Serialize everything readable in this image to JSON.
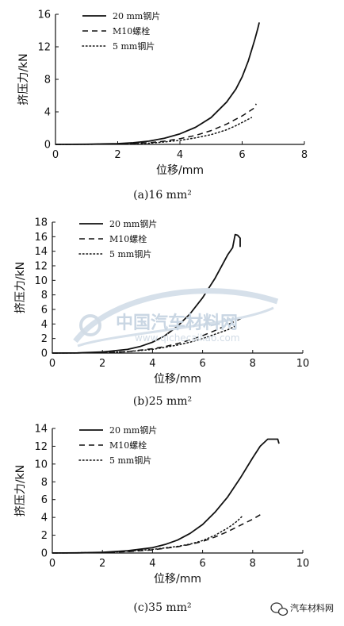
{
  "chart_data": [
    {
      "type": "line",
      "caption": "(a)16 mm²",
      "xlabel": "位移/mm",
      "ylabel": "挤压力/kN",
      "xlim": [
        0,
        8
      ],
      "ylim": [
        0,
        16
      ],
      "xticks": [
        0,
        2,
        4,
        6,
        8
      ],
      "yticks": [
        0,
        4,
        8,
        12,
        16
      ],
      "legend_position": "top-left",
      "series": [
        {
          "name": "20 mm钢片",
          "style": "solid",
          "x": [
            0,
            1,
            2,
            2.5,
            3,
            3.5,
            4,
            4.5,
            5,
            5.5,
            5.8,
            6,
            6.2,
            6.4,
            6.5,
            6.55
          ],
          "y": [
            0,
            0.02,
            0.1,
            0.2,
            0.4,
            0.75,
            1.3,
            2.1,
            3.3,
            5.2,
            6.8,
            8.3,
            10.3,
            12.8,
            14.2,
            15
          ]
        },
        {
          "name": "M10螺栓",
          "style": "dashed",
          "x": [
            0,
            2,
            3,
            3.5,
            4,
            4.5,
            5,
            5.5,
            6,
            6.2,
            6.4,
            6.45
          ],
          "y": [
            0,
            0.05,
            0.2,
            0.4,
            0.7,
            1.1,
            1.7,
            2.5,
            3.5,
            4.0,
            4.5,
            5.0
          ]
        },
        {
          "name": "5 mm钢片",
          "style": "dotted",
          "x": [
            0,
            2,
            3,
            3.5,
            4,
            4.5,
            5,
            5.5,
            5.8,
            6,
            6.2,
            6.3
          ],
          "y": [
            0,
            0.03,
            0.15,
            0.3,
            0.5,
            0.8,
            1.2,
            1.8,
            2.3,
            2.7,
            3.1,
            3.3
          ]
        }
      ]
    },
    {
      "type": "line",
      "caption": "(b)25 mm²",
      "xlabel": "位移/mm",
      "ylabel": "挤压力/kN",
      "xlim": [
        0,
        10
      ],
      "ylim": [
        0,
        18
      ],
      "xticks": [
        0,
        2,
        4,
        6,
        8,
        10
      ],
      "yticks": [
        0,
        2,
        4,
        6,
        8,
        10,
        12,
        14,
        16,
        18
      ],
      "legend_position": "top-left",
      "series": [
        {
          "name": "20 mm钢片",
          "style": "solid",
          "x": [
            0,
            1,
            2,
            3,
            3.5,
            4,
            4.5,
            5,
            5.5,
            6,
            6.5,
            7,
            7.2,
            7.3,
            7.4,
            7.5,
            7.5
          ],
          "y": [
            0,
            0.02,
            0.15,
            0.5,
            0.9,
            1.5,
            2.4,
            3.7,
            5.4,
            7.6,
            10.3,
            13.5,
            14.5,
            16.3,
            16.2,
            15.8,
            14.6
          ]
        },
        {
          "name": "M10螺栓",
          "style": "dashed",
          "x": [
            0,
            2,
            3,
            4,
            4.5,
            5,
            5.5,
            6,
            6.5,
            7,
            7.5,
            7.7
          ],
          "y": [
            0,
            0.05,
            0.2,
            0.6,
            0.9,
            1.3,
            1.8,
            2.4,
            3.1,
            3.9,
            4.7,
            5.1
          ]
        },
        {
          "name": "5 mm钢片",
          "style": "dotted",
          "x": [
            0,
            2,
            3,
            4,
            4.5,
            5,
            5.5,
            6,
            6.5,
            7,
            7.3
          ],
          "y": [
            0,
            0.04,
            0.2,
            0.5,
            0.8,
            1.1,
            1.5,
            2.0,
            2.6,
            3.2,
            3.7
          ]
        }
      ]
    },
    {
      "type": "line",
      "caption": "(c)35 mm²",
      "xlabel": "位移/mm",
      "ylabel": "挤压力/kN",
      "xlim": [
        0,
        10
      ],
      "ylim": [
        0,
        14
      ],
      "xticks": [
        0,
        2,
        4,
        6,
        8,
        10
      ],
      "yticks": [
        0,
        2,
        4,
        6,
        8,
        10,
        12,
        14
      ],
      "legend_position": "top-left",
      "series": [
        {
          "name": "20 mm钢片",
          "style": "solid",
          "x": [
            0,
            1,
            2,
            3,
            4,
            4.5,
            5,
            5.5,
            6,
            6.5,
            7,
            7.5,
            8,
            8.3,
            8.6,
            9,
            9.05
          ],
          "y": [
            0,
            0.02,
            0.08,
            0.25,
            0.6,
            0.95,
            1.45,
            2.2,
            3.2,
            4.6,
            6.3,
            8.4,
            10.7,
            12.0,
            12.8,
            12.8,
            12.3
          ]
        },
        {
          "name": "M10螺栓",
          "style": "dashed",
          "x": [
            0,
            2,
            3,
            4,
            5,
            5.5,
            6,
            6.5,
            7,
            7.5,
            8,
            8.3
          ],
          "y": [
            0,
            0.05,
            0.15,
            0.35,
            0.7,
            0.95,
            1.3,
            1.8,
            2.4,
            3.1,
            3.8,
            4.3
          ]
        },
        {
          "name": "5 mm钢片",
          "style": "dotted",
          "x": [
            0,
            2,
            3,
            4,
            5,
            5.5,
            6,
            6.5,
            7,
            7.3,
            7.5,
            7.6
          ],
          "y": [
            0,
            0.05,
            0.2,
            0.4,
            0.75,
            1.0,
            1.4,
            2.0,
            2.8,
            3.4,
            3.9,
            4.2
          ]
        }
      ]
    }
  ],
  "watermark": {
    "text": "中国汽车材料网",
    "sub": "www.qichecailiao.com"
  },
  "brand_label": "汽车材料网",
  "colors": {
    "line": "#111111",
    "watermark": "#c9d6e3"
  },
  "icons": {
    "brand": "wechat-icon",
    "watermark": "car-outline-icon"
  }
}
